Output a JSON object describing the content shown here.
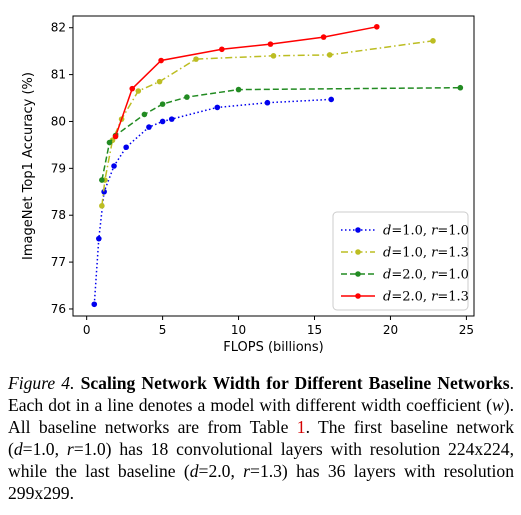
{
  "chart_data": {
    "type": "line",
    "xlabel": "FLOPS (billions)",
    "ylabel": "ImageNet Top1 Accuracy (%)",
    "xlim": [
      -0.9,
      25.5
    ],
    "ylim": [
      75.85,
      82.25
    ],
    "xticks": [
      0,
      5,
      10,
      15,
      20,
      25
    ],
    "yticks": [
      76,
      77,
      78,
      79,
      80,
      81,
      82
    ],
    "grid": false,
    "legend_position": "lower-right",
    "series": [
      {
        "name_parts": [
          "d",
          "=1.0, ",
          "r",
          "=1.0"
        ],
        "color": "#0000ee",
        "line_style": "dotted",
        "x": [
          0.5,
          0.8,
          1.15,
          1.8,
          2.6,
          4.1,
          5.0,
          5.6,
          8.6,
          11.9,
          16.1
        ],
        "y": [
          76.1,
          77.5,
          78.5,
          79.05,
          79.45,
          79.88,
          80.0,
          80.05,
          80.3,
          80.4,
          80.47
        ]
      },
      {
        "name_parts": [
          "d",
          "=1.0, ",
          "r",
          "=1.3"
        ],
        "color": "#bcbd22",
        "line_style": "dashdot",
        "x": [
          1.0,
          1.2,
          1.7,
          2.3,
          3.4,
          4.8,
          7.2,
          12.3,
          16.0,
          22.8
        ],
        "y": [
          78.2,
          78.75,
          79.6,
          80.05,
          80.65,
          80.85,
          81.33,
          81.4,
          81.42,
          81.72
        ]
      },
      {
        "name_parts": [
          "d",
          "=2.0, ",
          "r",
          "=1.0"
        ],
        "color": "#228b22",
        "line_style": "dashed",
        "x": [
          1.0,
          1.5,
          1.9,
          3.8,
          5.0,
          6.6,
          10.0,
          24.6
        ],
        "y": [
          78.75,
          79.55,
          79.7,
          80.15,
          80.37,
          80.52,
          80.68,
          80.72
        ]
      },
      {
        "name_parts": [
          "d",
          "=2.0, ",
          "r",
          "=1.3"
        ],
        "color": "#ff0000",
        "line_style": "solid",
        "x": [
          1.9,
          3.0,
          4.9,
          8.9,
          12.1,
          15.6,
          19.1
        ],
        "y": [
          79.68,
          80.7,
          81.3,
          81.54,
          81.65,
          81.8,
          82.02
        ]
      }
    ]
  },
  "caption": {
    "label": "Figure 4.",
    "title": "Scaling Network Width for Different Baseline Networks",
    "text_1": ". Each dot in a line denotes a model with different width coefficient (",
    "w": "w",
    "text_2": "). All baseline networks are from Table ",
    "table_ref": "1",
    "text_3": ". The first baseline network (",
    "d1": "d",
    "text_4": "=1.0, ",
    "r1": "r",
    "text_5": "=1.0) has 18 convolutional layers with resolution 224x224, while the last baseline (",
    "d2": "d",
    "text_6": "=2.0, ",
    "r2": "r",
    "text_7": "=1.3) has 36 layers with resolution 299x299."
  }
}
